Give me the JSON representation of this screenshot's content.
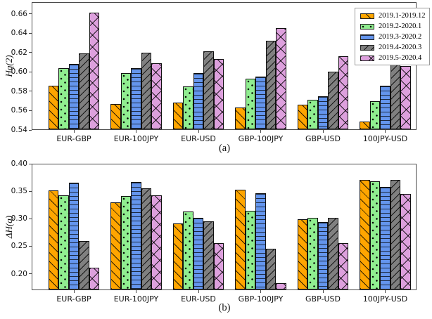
{
  "captions": {
    "a": "(a)",
    "b": "(b)"
  },
  "chart_data": [
    {
      "type": "bar",
      "subplot": "a",
      "title": "",
      "xlabel": "",
      "ylabel": "Hq(2)",
      "grid": false,
      "legend_position": "upper right",
      "ylim": [
        0.54,
        0.672
      ],
      "yticks": [
        "0.54",
        "0.56",
        "0.58",
        "0.60",
        "0.62",
        "0.64",
        "0.66"
      ],
      "categories": [
        "EUR-GBP",
        "EUR-100JPY",
        "EUR-USD",
        "GBP-100JPY",
        "GBP-USD",
        "100JPY-USD"
      ],
      "series": [
        {
          "name": "2019.1-2019.12",
          "color": "#FFA500",
          "hatch": "backslash",
          "values": [
            0.586,
            0.567,
            0.568,
            0.563,
            0.566,
            0.549
          ]
        },
        {
          "name": "2019.2-2020.1",
          "color": "#90EE90",
          "hatch": "dots",
          "values": [
            0.604,
            0.599,
            0.585,
            0.593,
            0.571,
            0.57
          ]
        },
        {
          "name": "2019.3-2020.2",
          "color": "#6495ED",
          "hatch": "horizontal",
          "values": [
            0.608,
            0.604,
            0.599,
            0.595,
            0.575,
            0.586
          ]
        },
        {
          "name": "2019.4-2020.3",
          "color": "#808080",
          "hatch": "slash",
          "values": [
            0.619,
            0.62,
            0.621,
            0.632,
            0.6,
            0.609
          ]
        },
        {
          "name": "2019.5-2020.4",
          "color": "#DDA0DD",
          "hatch": "cross",
          "values": [
            0.661,
            0.609,
            0.613,
            0.645,
            0.616,
            0.606
          ]
        }
      ]
    },
    {
      "type": "bar",
      "subplot": "b",
      "title": "",
      "xlabel": "",
      "ylabel": "ΔH(q)",
      "grid": false,
      "legend_position": "none",
      "ylim": [
        0.17,
        0.4
      ],
      "yticks": [
        "0.20",
        "0.25",
        "0.30",
        "0.35",
        "0.40"
      ],
      "categories": [
        "EUR-GBP",
        "EUR-100JPY",
        "EUR-USD",
        "GBP-100JPY",
        "GBP-USD",
        "100JPY-USD"
      ],
      "series": [
        {
          "name": "2019.1-2019.12",
          "color": "#FFA500",
          "hatch": "backslash",
          "values": [
            0.351,
            0.33,
            0.292,
            0.353,
            0.299,
            0.37
          ]
        },
        {
          "name": "2019.2-2020.1",
          "color": "#90EE90",
          "hatch": "dots",
          "values": [
            0.342,
            0.341,
            0.313,
            0.314,
            0.301,
            0.368
          ]
        },
        {
          "name": "2019.3-2020.2",
          "color": "#6495ED",
          "hatch": "horizontal",
          "values": [
            0.365,
            0.367,
            0.301,
            0.346,
            0.294,
            0.358
          ]
        },
        {
          "name": "2019.4-2020.3",
          "color": "#808080",
          "hatch": "slash",
          "values": [
            0.26,
            0.355,
            0.295,
            0.246,
            0.302,
            0.371
          ]
        },
        {
          "name": "2019.5-2020.4",
          "color": "#DDA0DD",
          "hatch": "cross",
          "values": [
            0.211,
            0.343,
            0.256,
            0.183,
            0.255,
            0.345
          ]
        }
      ]
    }
  ]
}
